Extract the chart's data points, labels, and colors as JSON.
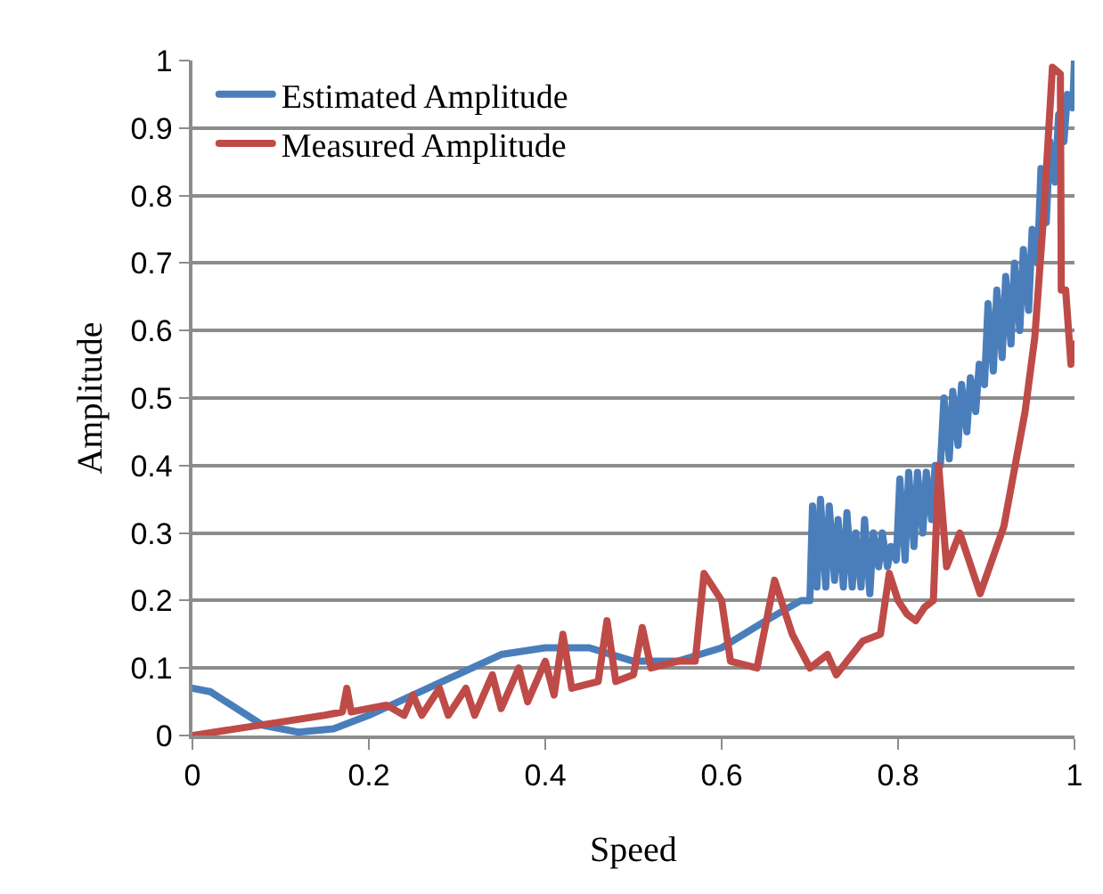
{
  "chart_data": {
    "type": "line",
    "xlabel": "Speed",
    "ylabel": "Amplitude",
    "xlim": [
      0,
      1
    ],
    "ylim": [
      0,
      1
    ],
    "xticks": [
      0,
      0.2,
      0.4,
      0.6,
      0.8,
      1
    ],
    "yticks": [
      0,
      0.1,
      0.2,
      0.3,
      0.4,
      0.5,
      0.6,
      0.7,
      0.8,
      0.9,
      1
    ],
    "grid": "y",
    "legend": "top left",
    "marker": "none",
    "line_style": "solid",
    "series": [
      {
        "name": "Estimated Amplitude",
        "color": "#4a7ebb",
        "x": [
          0,
          0.02,
          0.05,
          0.08,
          0.12,
          0.16,
          0.2,
          0.25,
          0.3,
          0.35,
          0.4,
          0.45,
          0.5,
          0.55,
          0.6,
          0.65,
          0.69,
          0.7,
          0.703,
          0.708,
          0.712,
          0.718,
          0.722,
          0.728,
          0.732,
          0.738,
          0.742,
          0.748,
          0.752,
          0.758,
          0.762,
          0.768,
          0.772,
          0.778,
          0.782,
          0.788,
          0.792,
          0.798,
          0.802,
          0.808,
          0.812,
          0.818,
          0.822,
          0.828,
          0.832,
          0.838,
          0.842,
          0.848,
          0.852,
          0.858,
          0.862,
          0.868,
          0.872,
          0.878,
          0.882,
          0.888,
          0.892,
          0.898,
          0.902,
          0.908,
          0.912,
          0.918,
          0.922,
          0.928,
          0.932,
          0.938,
          0.942,
          0.948,
          0.952,
          0.958,
          0.962,
          0.968,
          0.972,
          0.978,
          0.982,
          0.988,
          0.992,
          0.998,
          1
        ],
        "values": [
          0.07,
          0.065,
          0.04,
          0.015,
          0.005,
          0.01,
          0.03,
          0.06,
          0.09,
          0.12,
          0.13,
          0.13,
          0.11,
          0.11,
          0.13,
          0.17,
          0.2,
          0.2,
          0.34,
          0.22,
          0.35,
          0.22,
          0.34,
          0.23,
          0.32,
          0.22,
          0.33,
          0.22,
          0.3,
          0.22,
          0.32,
          0.21,
          0.3,
          0.25,
          0.3,
          0.25,
          0.28,
          0.26,
          0.38,
          0.26,
          0.39,
          0.28,
          0.39,
          0.3,
          0.39,
          0.32,
          0.4,
          0.4,
          0.5,
          0.41,
          0.51,
          0.43,
          0.52,
          0.45,
          0.53,
          0.48,
          0.55,
          0.52,
          0.64,
          0.54,
          0.66,
          0.56,
          0.68,
          0.58,
          0.7,
          0.6,
          0.72,
          0.63,
          0.75,
          0.7,
          0.84,
          0.76,
          0.88,
          0.82,
          0.92,
          0.88,
          0.95,
          0.93,
          1
        ]
      },
      {
        "name": "Measured Amplitude",
        "color": "#be4b48",
        "x": [
          0,
          0.05,
          0.1,
          0.15,
          0.17,
          0.175,
          0.18,
          0.2,
          0.22,
          0.24,
          0.25,
          0.26,
          0.28,
          0.29,
          0.31,
          0.32,
          0.34,
          0.35,
          0.37,
          0.38,
          0.4,
          0.41,
          0.42,
          0.43,
          0.46,
          0.47,
          0.48,
          0.5,
          0.51,
          0.52,
          0.55,
          0.57,
          0.58,
          0.6,
          0.61,
          0.64,
          0.66,
          0.68,
          0.7,
          0.72,
          0.73,
          0.76,
          0.78,
          0.79,
          0.8,
          0.81,
          0.82,
          0.83,
          0.84,
          0.846,
          0.855,
          0.87,
          0.893,
          0.92,
          0.944,
          0.955,
          0.965,
          0.975,
          0.984,
          0.985,
          0.99,
          0.996,
          1
        ],
        "values": [
          0,
          0.01,
          0.02,
          0.03,
          0.035,
          0.07,
          0.035,
          0.04,
          0.045,
          0.03,
          0.06,
          0.03,
          0.07,
          0.03,
          0.07,
          0.03,
          0.09,
          0.04,
          0.1,
          0.05,
          0.11,
          0.06,
          0.15,
          0.07,
          0.08,
          0.17,
          0.08,
          0.09,
          0.16,
          0.1,
          0.11,
          0.11,
          0.24,
          0.2,
          0.11,
          0.1,
          0.23,
          0.15,
          0.1,
          0.12,
          0.09,
          0.14,
          0.15,
          0.24,
          0.2,
          0.18,
          0.17,
          0.19,
          0.2,
          0.4,
          0.25,
          0.3,
          0.21,
          0.31,
          0.48,
          0.59,
          0.77,
          0.99,
          0.98,
          0.66,
          0.66,
          0.55,
          0.58
        ]
      }
    ]
  }
}
